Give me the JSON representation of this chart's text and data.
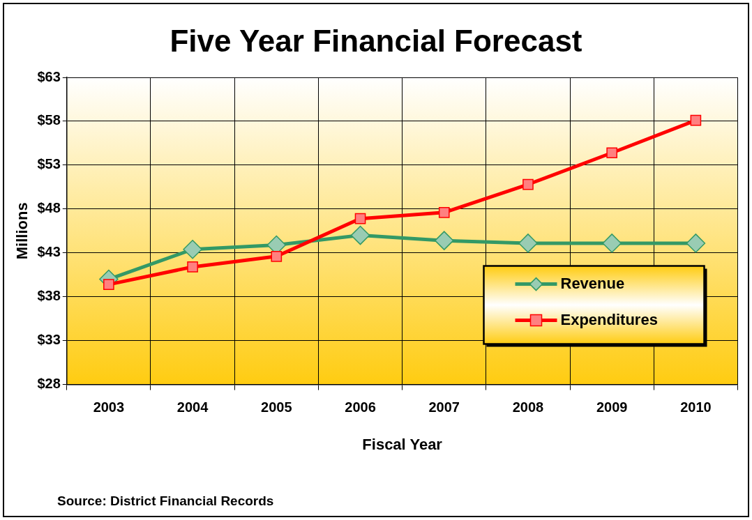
{
  "chart_data": {
    "type": "line",
    "title": "Five Year Financial Forecast",
    "xlabel": "Fiscal Year",
    "ylabel": "Millions",
    "categories": [
      "2003",
      "2004",
      "2005",
      "2006",
      "2007",
      "2008",
      "2009",
      "2010"
    ],
    "series": [
      {
        "name": "Revenue",
        "color": "#339966",
        "marker": "diamond",
        "values": [
          40.0,
          43.4,
          43.9,
          45.0,
          44.4,
          44.1,
          44.1,
          44.1
        ]
      },
      {
        "name": "Expenditures",
        "color": "#ff0000",
        "marker": "square",
        "values": [
          39.4,
          41.4,
          42.6,
          46.9,
          47.6,
          50.8,
          54.4,
          58.1
        ]
      }
    ],
    "ylim": [
      28,
      63
    ],
    "yticks": [
      {
        "value": 28,
        "label": "$28"
      },
      {
        "value": 33,
        "label": "$33"
      },
      {
        "value": 38,
        "label": "$38"
      },
      {
        "value": 43,
        "label": "$43"
      },
      {
        "value": 48,
        "label": "$48"
      },
      {
        "value": 53,
        "label": "$53"
      },
      {
        "value": 58,
        "label": "$58"
      },
      {
        "value": 63,
        "label": "$63"
      }
    ],
    "grid": true,
    "legend": "bottom right",
    "line_style": "solid",
    "annotations": [
      "Source: District Financial Records"
    ]
  }
}
